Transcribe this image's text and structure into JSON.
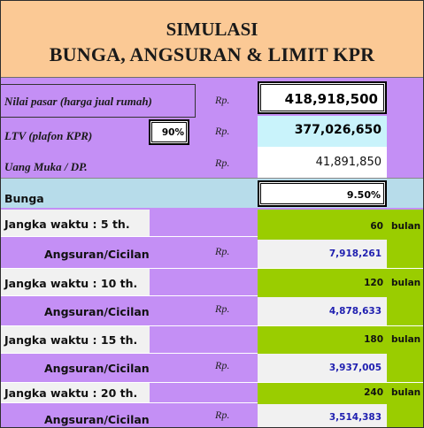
{
  "title": {
    "line1": "SIMULASI",
    "line2": "BUNGA, ANGSURAN & LIMIT KPR"
  },
  "nilai_pasar": {
    "label": "Nilai pasar  (harga jual rumah)",
    "currency": "Rp.",
    "value": "418,918,500"
  },
  "ltv": {
    "label": "LTV (plafon KPR)",
    "percent": "90%",
    "currency": "Rp.",
    "value": "377,026,650"
  },
  "uang_muka": {
    "label": "Uang Muka / DP.",
    "currency": "Rp.",
    "value": "41,891,850"
  },
  "bunga": {
    "label": "Bunga",
    "value": "9.50%"
  },
  "terms": [
    {
      "label": "Jangka waktu : 5 th.",
      "months": "60",
      "unit": "bulan",
      "cicilan_label": "Angsuran/Cicilan",
      "currency": "Rp.",
      "cicilan": "7,918,261"
    },
    {
      "label": "Jangka waktu : 10 th.",
      "months": "120",
      "unit": "bulan",
      "cicilan_label": "Angsuran/Cicilan",
      "currency": "Rp.",
      "cicilan": "4,878,633"
    },
    {
      "label": "Jangka waktu : 15 th.",
      "months": "180",
      "unit": "bulan",
      "cicilan_label": "Angsuran/Cicilan",
      "currency": "Rp.",
      "cicilan": "3,937,005"
    },
    {
      "label": "Jangka waktu : 20 th.",
      "months": "240",
      "unit": "bulan",
      "cicilan_label": "Angsuran/Cicilan",
      "currency": "Rp.",
      "cicilan": "3,514,383"
    }
  ],
  "colors": {
    "title_bg": "#fbc995",
    "purple": "#c48ff5",
    "green": "#9acd00",
    "light_blue": "#b7dcea",
    "cyan_cell": "#c9f3fb",
    "cicilan_text": "#1f1fb0"
  }
}
